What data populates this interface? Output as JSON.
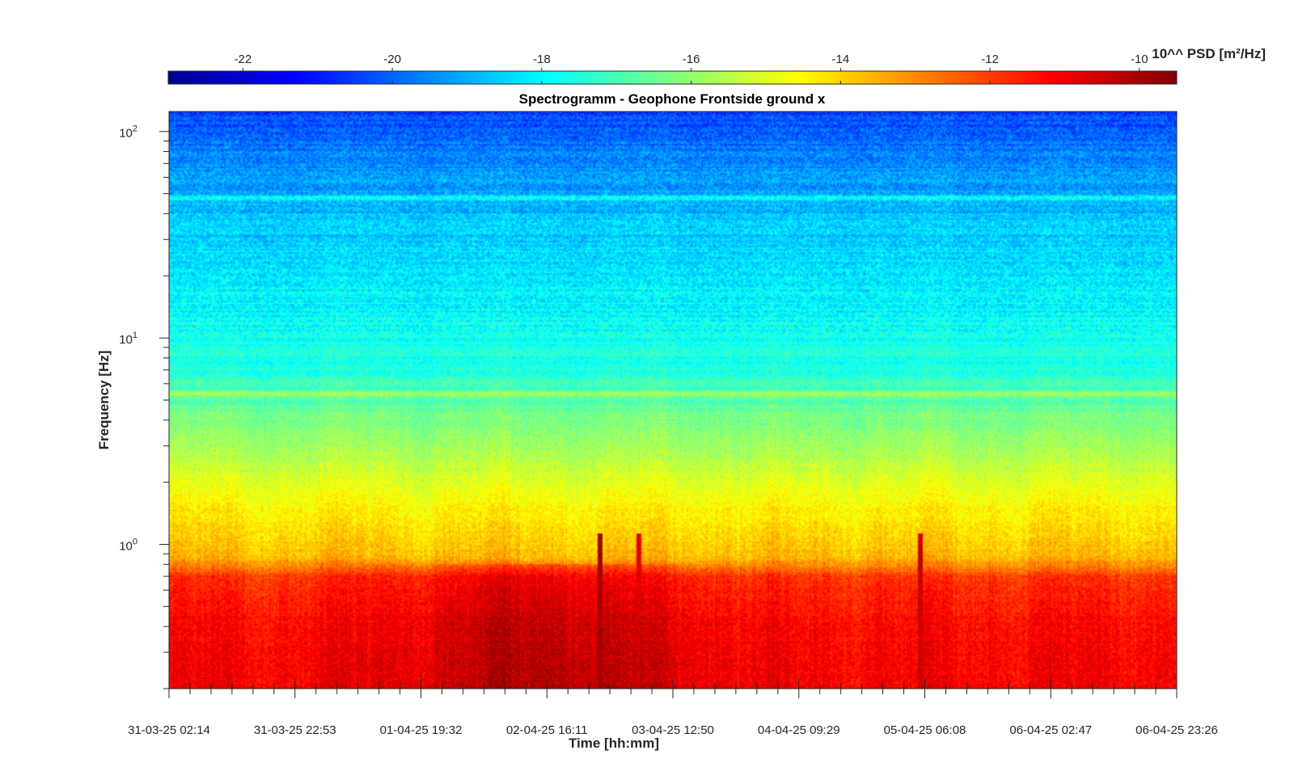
{
  "chart_data": {
    "type": "heatmap",
    "title": "Spectrogramm - Geophone Frontside ground x",
    "xlabel": "Time [hh:mm]",
    "ylabel": "Frequency [Hz]",
    "x_ticks": [
      "31-03-25 02:14",
      "31-03-25 22:53",
      "01-04-25 19:32",
      "02-04-25 16:11",
      "03-04-25 12:50",
      "04-04-25 09:29",
      "05-04-25 06:08",
      "06-04-25 02:47",
      "06-04-25 23:26"
    ],
    "y_scale": "log",
    "ylim": [
      0.2,
      125
    ],
    "y_ticks": [
      {
        "value": 1,
        "base": "10",
        "exp": "0"
      },
      {
        "value": 10,
        "base": "10",
        "exp": "1"
      },
      {
        "value": 100,
        "base": "10",
        "exp": "2"
      }
    ],
    "colorbar": {
      "label": "10^^ PSD [m²/Hz]",
      "range": [
        -23,
        -9.5
      ],
      "ticks": [
        "-22",
        "-20",
        "-18",
        "-16",
        "-14",
        "-12",
        "-10"
      ],
      "tick_values": [
        -22,
        -20,
        -18,
        -16,
        -14,
        -12,
        -10
      ],
      "colormap": "jet",
      "placement": "top"
    },
    "psd_profile": [
      {
        "freq_hz": 0.2,
        "log10_psd": -10.8
      },
      {
        "freq_hz": 0.4,
        "log10_psd": -11.0
      },
      {
        "freq_hz": 0.7,
        "log10_psd": -11.6
      },
      {
        "freq_hz": 0.85,
        "log10_psd": -13.6
      },
      {
        "freq_hz": 1.5,
        "log10_psd": -14.4
      },
      {
        "freq_hz": 3.0,
        "log10_psd": -15.8
      },
      {
        "freq_hz": 5.0,
        "log10_psd": -16.7
      },
      {
        "freq_hz": 7.0,
        "log10_psd": -17.4
      },
      {
        "freq_hz": 15.0,
        "log10_psd": -18.0
      },
      {
        "freq_hz": 30.0,
        "log10_psd": -18.5
      },
      {
        "freq_hz": 60.0,
        "log10_psd": -19.3
      },
      {
        "freq_hz": 100.0,
        "log10_psd": -20.0
      },
      {
        "freq_hz": 125.0,
        "log10_psd": -20.5
      }
    ],
    "horizontal_lines_hz": [
      5.4,
      48
    ],
    "transient_events": [
      {
        "x_fraction": 0.427,
        "log10_psd": -10.0
      },
      {
        "x_fraction": 0.466,
        "log10_psd": -10.8
      },
      {
        "x_fraction": 0.745,
        "log10_psd": -10.5
      }
    ]
  }
}
